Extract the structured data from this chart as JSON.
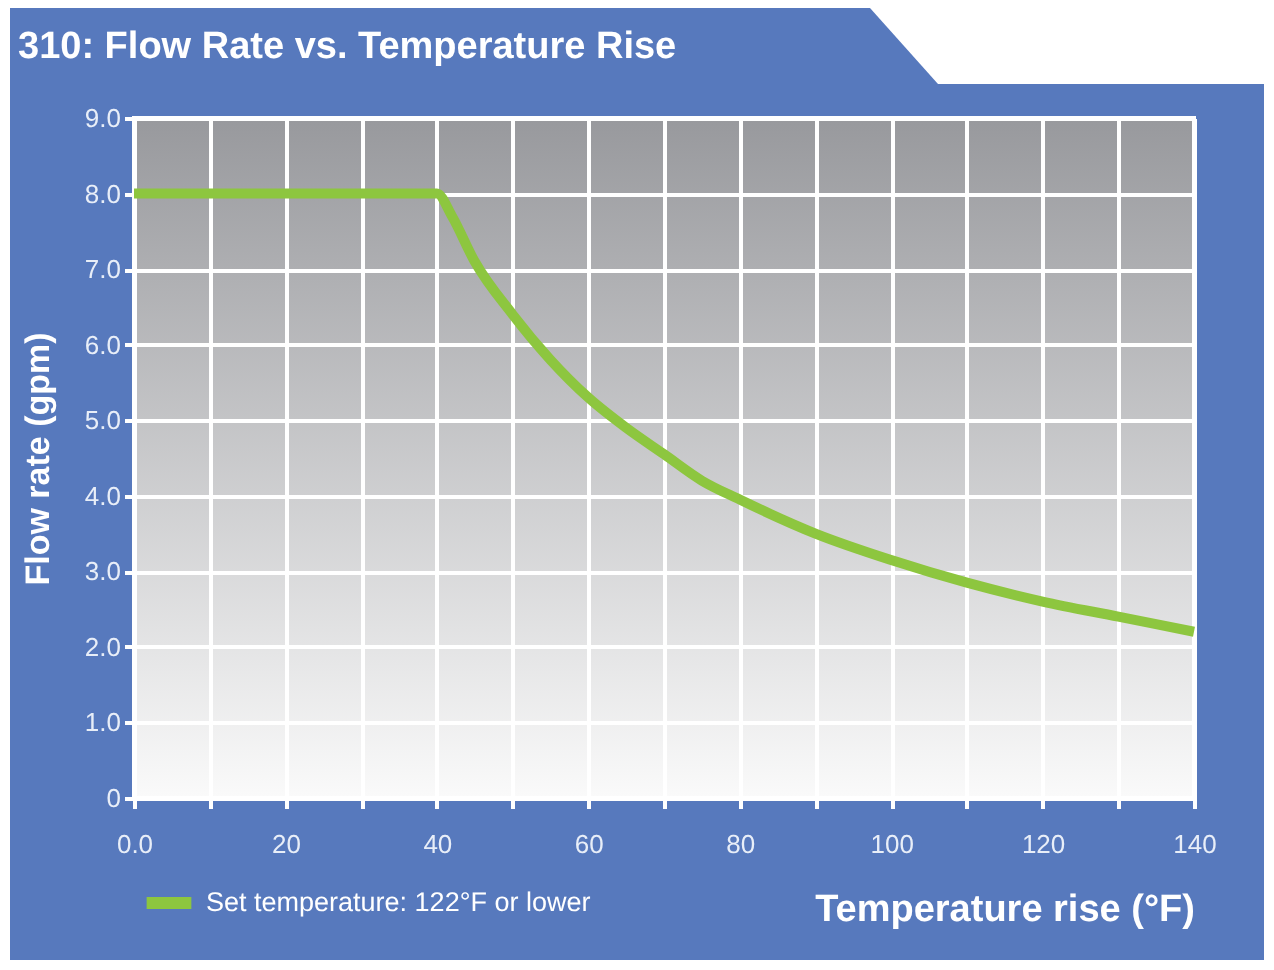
{
  "chart_data": {
    "type": "line",
    "title": "310: Flow Rate vs. Temperature Rise",
    "xlabel": "Temperature rise (°F)",
    "ylabel": "Flow rate (gpm)",
    "x": [
      0,
      10,
      20,
      30,
      40,
      42,
      45,
      50,
      55,
      60,
      65,
      70,
      75,
      80,
      90,
      100,
      110,
      120,
      130,
      140
    ],
    "series": [
      {
        "name": "Set temperature: 122°F or lower",
        "color": "#8dc63f",
        "values": [
          8,
          8,
          8,
          8,
          8,
          7.7,
          7.1,
          6.4,
          5.8,
          5.3,
          4.9,
          4.55,
          4.2,
          3.95,
          3.5,
          3.15,
          2.85,
          2.6,
          2.4,
          2.2
        ]
      }
    ],
    "xlim": [
      0,
      140
    ],
    "xticks": [
      {
        "value": 0,
        "label": "0.0"
      },
      {
        "value": 10,
        "label": null
      },
      20,
      {
        "value": 30,
        "label": null
      },
      40,
      {
        "value": 50,
        "label": null
      },
      60,
      {
        "value": 70,
        "label": null
      },
      80,
      {
        "value": 90,
        "label": null
      },
      100,
      {
        "value": 110,
        "label": null
      },
      120,
      {
        "value": 130,
        "label": null
      },
      140
    ],
    "ylim": [
      0,
      9
    ],
    "yticks": [
      0,
      {
        "value": 1,
        "label": "1.0"
      },
      {
        "value": 2,
        "label": "2.0"
      },
      {
        "value": 3,
        "label": "3.0"
      },
      {
        "value": 4,
        "label": "4.0"
      },
      {
        "value": 5,
        "label": "5.0"
      },
      {
        "value": 6,
        "label": "6.0"
      },
      {
        "value": 7,
        "label": "7.0"
      },
      {
        "value": 8,
        "label": "8.0"
      },
      {
        "value": 9,
        "label": "9.0"
      }
    ],
    "grid": true,
    "legend": "bottom left",
    "line_style": "solid"
  }
}
